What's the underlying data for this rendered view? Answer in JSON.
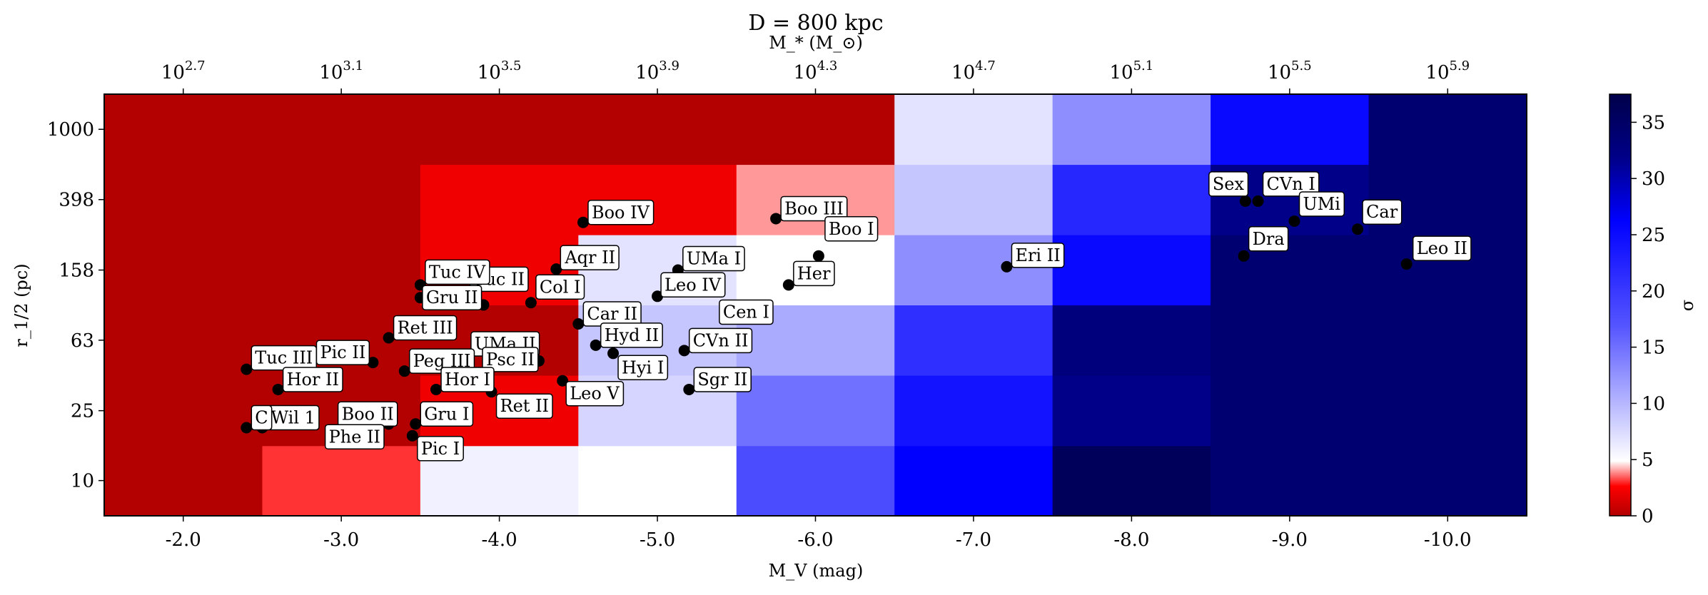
{
  "chart_data": {
    "type": "heatmap",
    "title": "D = 800 kpc",
    "xlabel": "M_V (mag)",
    "ylabel": "r_1/2 (pc)",
    "x2label": "M_* (M_⊙)",
    "colorbar_label": "σ",
    "xlim": [
      -1.5,
      -10.5
    ],
    "ylim": [
      6.3,
      1585
    ],
    "y_scale": "log",
    "x_ticks": [
      -2.0,
      -3.0,
      -4.0,
      -5.0,
      -6.0,
      -7.0,
      -8.0,
      -9.0,
      -10.0
    ],
    "x_tick_labels": [
      "-2.0",
      "-3.0",
      "-4.0",
      "-5.0",
      "-6.0",
      "-7.0",
      "-8.0",
      "-9.0",
      "-10.0"
    ],
    "y_ticks": [
      10,
      25,
      63,
      158,
      398,
      1000
    ],
    "y_tick_labels": [
      "10",
      "25",
      "63",
      "158",
      "398",
      "1000"
    ],
    "top_ticks": [
      {
        "base": "10",
        "exp": "2.7"
      },
      {
        "base": "10",
        "exp": "3.1"
      },
      {
        "base": "10",
        "exp": "3.5"
      },
      {
        "base": "10",
        "exp": "3.9"
      },
      {
        "base": "10",
        "exp": "4.3"
      },
      {
        "base": "10",
        "exp": "4.7"
      },
      {
        "base": "10",
        "exp": "5.1"
      },
      {
        "base": "10",
        "exp": "5.5"
      },
      {
        "base": "10",
        "exp": "5.9"
      }
    ],
    "colorbar": {
      "min": 0,
      "max": 37.5,
      "ticks": [
        0,
        5,
        10,
        15,
        20,
        25,
        30,
        35
      ],
      "tick_labels": [
        "0",
        "5",
        "10",
        "15",
        "20",
        "25",
        "30",
        "35"
      ],
      "colormap": "seismic_r"
    },
    "x_bins": [
      -1.5,
      -2.5,
      -3.5,
      -4.5,
      -5.5,
      -6.5,
      -7.5,
      -8.5,
      -9.5,
      -10.5
    ],
    "y_bins": [
      6.3,
      15.8,
      39.8,
      100,
      251,
      631,
      1585
    ],
    "grid_sigma": [
      [
        0,
        3,
        6,
        5,
        18,
        26,
        36,
        34,
        34
      ],
      [
        0,
        0,
        2,
        8,
        15,
        24,
        32,
        34,
        34
      ],
      [
        0,
        0,
        0,
        9,
        11,
        21,
        33,
        34,
        34
      ],
      [
        0,
        0,
        2,
        7,
        5,
        13,
        25,
        34,
        34
      ],
      [
        0,
        0,
        2,
        2,
        4,
        9,
        22,
        32,
        34
      ],
      [
        0,
        0,
        0,
        0,
        0,
        7,
        13,
        25,
        34
      ]
    ],
    "points": [
      {
        "name": "Boo IV",
        "mv": -4.53,
        "r": 295,
        "dx": 6,
        "dy": -26
      },
      {
        "name": "Boo III",
        "mv": -5.75,
        "r": 310,
        "dx": 6,
        "dy": -26
      },
      {
        "name": "Tuc II",
        "mv": -3.9,
        "r": 100,
        "dx": -20,
        "dy": -48
      },
      {
        "name": "Tuc IV",
        "mv": -3.5,
        "r": 130,
        "dx": 6,
        "dy": -30
      },
      {
        "name": "Gru II",
        "mv": -3.5,
        "r": 110,
        "dx": 2,
        "dy": -12
      },
      {
        "name": "Aqr II",
        "mv": -4.36,
        "r": 160,
        "dx": 6,
        "dy": -28
      },
      {
        "name": "UMa I",
        "mv": -5.13,
        "r": 158,
        "dx": 6,
        "dy": -28
      },
      {
        "name": "Boo I",
        "mv": -6.02,
        "r": 190,
        "dx": 8,
        "dy": -50
      },
      {
        "name": "Col I",
        "mv": -4.2,
        "r": 103,
        "dx": 6,
        "dy": -34
      },
      {
        "name": "Leo IV",
        "mv": -5.0,
        "r": 112,
        "dx": 4,
        "dy": -28
      },
      {
        "name": "Her",
        "mv": -5.83,
        "r": 130,
        "dx": 6,
        "dy": -28
      },
      {
        "name": "Cen I",
        "mv": -5.55,
        "r": 91,
        "dx": -36,
        "dy": -12
      },
      {
        "name": "Car II",
        "mv": -4.5,
        "r": 78,
        "dx": 6,
        "dy": -26
      },
      {
        "name": "Ret III",
        "mv": -3.3,
        "r": 65,
        "dx": 6,
        "dy": -26
      },
      {
        "name": "Pic II",
        "mv": -3.2,
        "r": 47,
        "dx": -80,
        "dy": -26
      },
      {
        "name": "UMa II",
        "mv": -4.2,
        "r": 60,
        "dx": -85,
        "dy": -12
      },
      {
        "name": "Psc II",
        "mv": -4.25,
        "r": 48,
        "dx": -80,
        "dy": -14
      },
      {
        "name": "Hyd II",
        "mv": -4.61,
        "r": 59,
        "dx": 6,
        "dy": -26
      },
      {
        "name": "CVn II",
        "mv": -5.17,
        "r": 55,
        "dx": 6,
        "dy": -26
      },
      {
        "name": "Tuc III",
        "mv": -2.4,
        "r": 43,
        "dx": 6,
        "dy": -28
      },
      {
        "name": "Peg III",
        "mv": -3.4,
        "r": 42,
        "dx": 6,
        "dy": -26
      },
      {
        "name": "Hyi I",
        "mv": -4.72,
        "r": 53,
        "dx": 6,
        "dy": 8
      },
      {
        "name": "Hor II",
        "mv": -2.6,
        "r": 33,
        "dx": 6,
        "dy": -26
      },
      {
        "name": "Hor I",
        "mv": -3.6,
        "r": 33,
        "dx": 6,
        "dy": -26
      },
      {
        "name": "Leo V",
        "mv": -4.4,
        "r": 37,
        "dx": 4,
        "dy": 6
      },
      {
        "name": "Sgr II",
        "mv": -5.2,
        "r": 33,
        "dx": 6,
        "dy": -26
      },
      {
        "name": "Boo II",
        "mv": -3.3,
        "r": 21,
        "dx": -72,
        "dy": -26
      },
      {
        "name": "Gru I",
        "mv": -3.47,
        "r": 21,
        "dx": 6,
        "dy": -26
      },
      {
        "name": "Ret II",
        "mv": -3.95,
        "r": 32,
        "dx": 6,
        "dy": 8
      },
      {
        "name": "Wil 1",
        "mv": -2.5,
        "r": 20,
        "dx": 6,
        "dy": -26
      },
      {
        "name": "C",
        "mv": -2.4,
        "r": 20,
        "dx": 6,
        "dy": -26
      },
      {
        "name": "Phe II",
        "mv": -3.3,
        "r": 21,
        "dx": -90,
        "dy": 6
      },
      {
        "name": "Pic I",
        "mv": -3.45,
        "r": 18,
        "dx": 6,
        "dy": 6
      },
      {
        "name": "Eri II",
        "mv": -7.21,
        "r": 165,
        "dx": 6,
        "dy": -28
      },
      {
        "name": "Sex",
        "mv": -8.72,
        "r": 390,
        "dx": -52,
        "dy": -36
      },
      {
        "name": "CVn I",
        "mv": -8.8,
        "r": 390,
        "dx": 6,
        "dy": -36
      },
      {
        "name": "UMi",
        "mv": -9.03,
        "r": 300,
        "dx": 6,
        "dy": -36
      },
      {
        "name": "Car",
        "mv": -9.43,
        "r": 270,
        "dx": 6,
        "dy": -36
      },
      {
        "name": "Dra",
        "mv": -8.71,
        "r": 190,
        "dx": 6,
        "dy": -36
      },
      {
        "name": "Leo II",
        "mv": -9.74,
        "r": 171,
        "dx": 8,
        "dy": -34
      }
    ]
  }
}
